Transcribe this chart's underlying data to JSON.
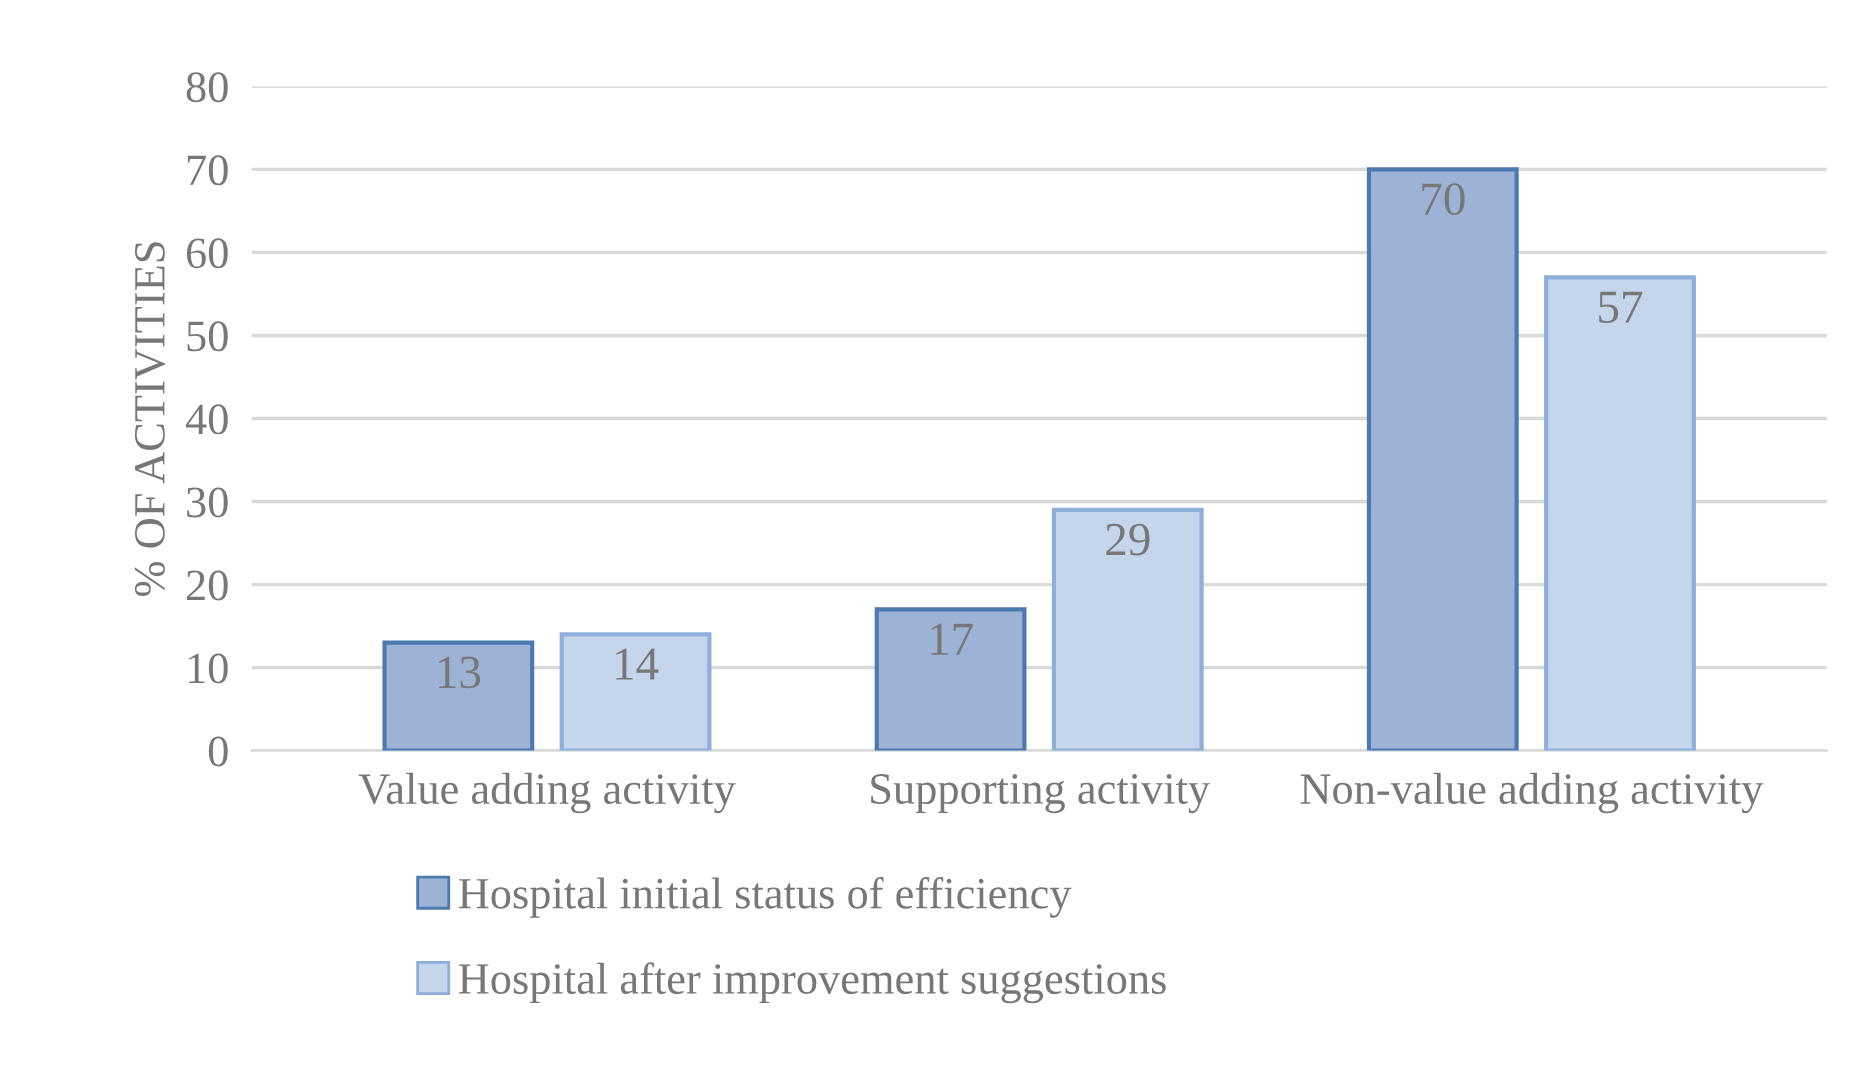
{
  "chart_data": {
    "type": "bar",
    "ylabel": "% OF ACTIVITIES",
    "categories": [
      "Value adding activity",
      "Supporting activity",
      "Non-value adding activity"
    ],
    "series": [
      {
        "name": "Hospital initial status of efficiency",
        "color": "#9cb3d6",
        "values": [
          13,
          17,
          70
        ]
      },
      {
        "name": "Hospital after improvement suggestions",
        "color": "#c5d6ec",
        "values": [
          14,
          29,
          57
        ]
      }
    ],
    "ylim": [
      0,
      80
    ],
    "yticks": [
      0,
      10,
      20,
      30,
      40,
      50,
      60,
      70,
      80
    ],
    "grid": "y",
    "legend": "bottom",
    "data_labels": true
  }
}
